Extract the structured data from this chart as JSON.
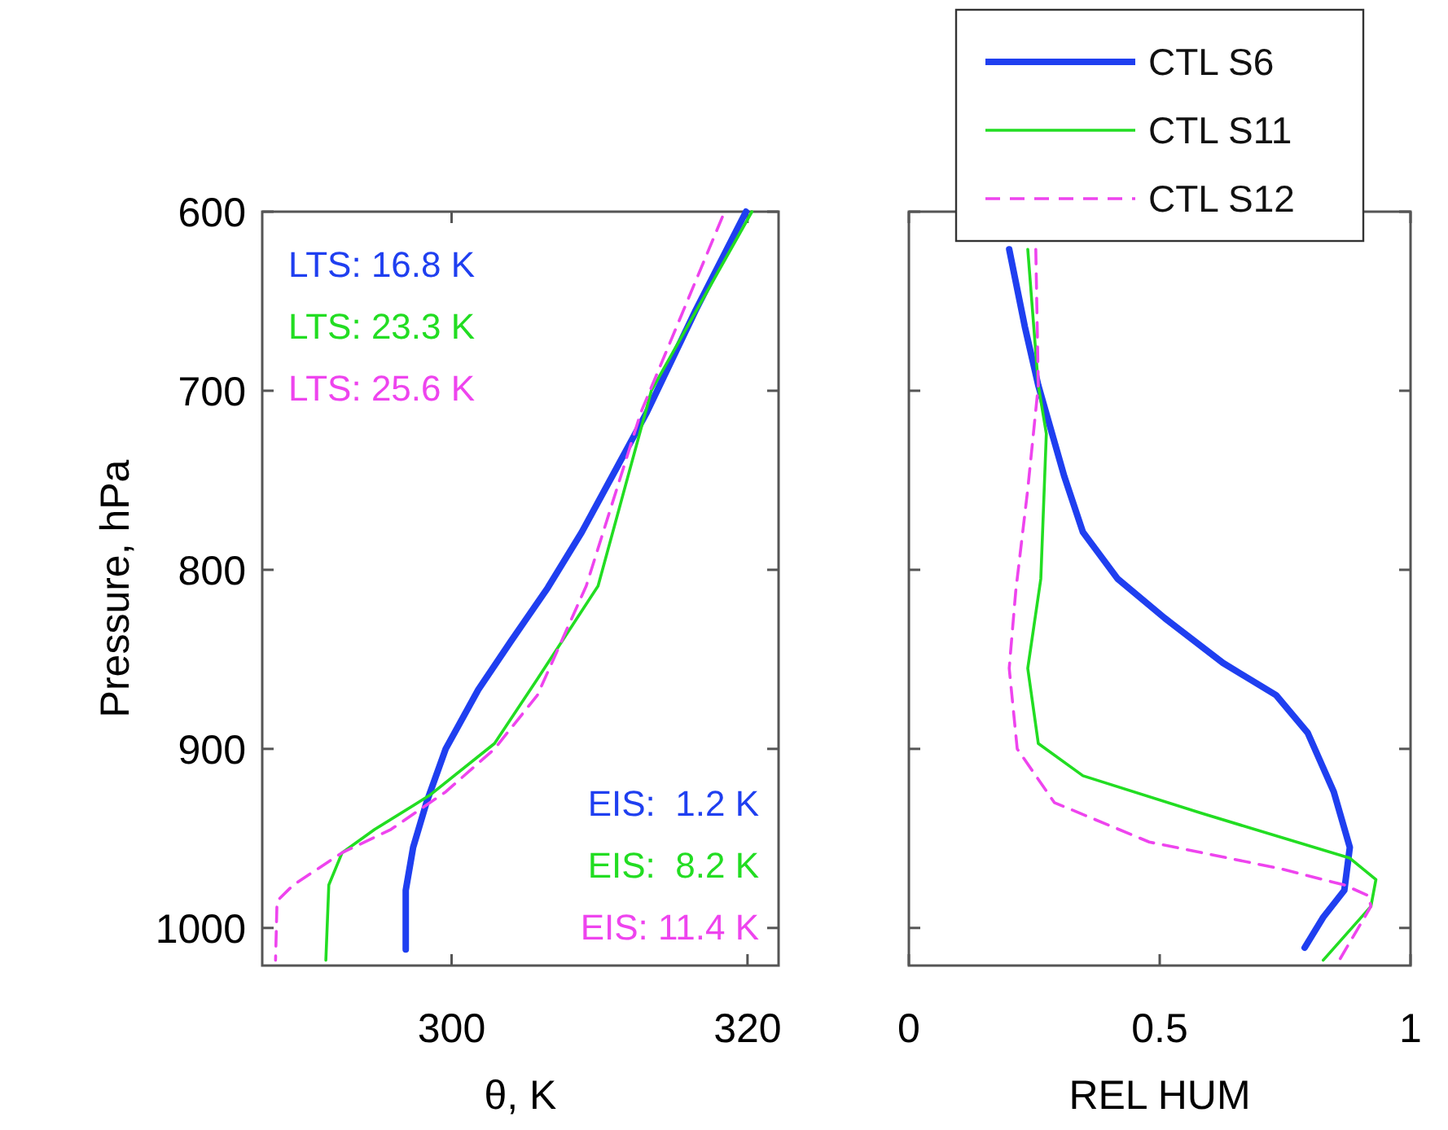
{
  "chart_data": [
    {
      "type": "line",
      "xlabel": "θ, K",
      "ylabel": "Pressure, hPa",
      "xlim": [
        287.2,
        322.1
      ],
      "xticks": [
        300,
        320
      ],
      "ylim": [
        1021,
        600
      ],
      "yticks": [
        600,
        700,
        800,
        900,
        1000
      ],
      "grid": false,
      "legend": false,
      "annotations": [
        "LTS: 16.8 K",
        "LTS: 23.3 K",
        "LTS: 25.6 K",
        "EIS:  1.2 K",
        "EIS:  8.2 K",
        "EIS: 11.4 K"
      ],
      "series": [
        {
          "color": "#1f3ff0",
          "line_style": "solid",
          "x": [
            319.9,
            316.5,
            313.2,
            308.8,
            306.5,
            304.0,
            301.8,
            299.6,
            298.3,
            297.4,
            296.9,
            296.9
          ],
          "values": [
            600,
            655,
            712,
            779,
            810,
            840,
            867,
            900,
            930,
            955,
            979,
            1012
          ]
        },
        {
          "color": "#22dd22",
          "line_style": "solid",
          "x": [
            320.3,
            313.5,
            309.9,
            305.8,
            302.9,
            298.5,
            294.8,
            292.6,
            291.7,
            291.5
          ],
          "values": [
            600,
            700,
            809,
            861,
            897,
            926,
            945,
            958,
            976,
            1018
          ]
        },
        {
          "color": "#ee44ee",
          "line_style": "dashed",
          "x": [
            318.3,
            312.8,
            309.1,
            305.8,
            302.9,
            299.6,
            295.9,
            292.6,
            289.3,
            288.2,
            288.1
          ],
          "values": [
            603,
            712,
            809,
            870,
            900,
            924,
            945,
            958,
            976,
            985,
            1018
          ]
        }
      ]
    },
    {
      "type": "line",
      "xlabel": "REL HUM",
      "xlim": [
        0,
        1
      ],
      "xticks": [
        0,
        0.5,
        1
      ],
      "ylim": [
        1021,
        600
      ],
      "yticks": [
        600,
        700,
        800,
        900,
        1000
      ],
      "tick_labels": "x",
      "grid": false,
      "legend": "top",
      "series": [
        {
          "name": "CTL S6",
          "color": "#1f3ff0",
          "line_style": "solid",
          "x": [
            0.2,
            0.231,
            0.258,
            0.31,
            0.347,
            0.416,
            0.51,
            0.626,
            0.732,
            0.795,
            0.847,
            0.879,
            0.868,
            0.826,
            0.789
          ],
          "values": [
            621,
            664,
            697,
            748,
            779,
            805,
            827,
            852,
            870,
            891,
            924,
            955,
            979,
            994,
            1011
          ]
        },
        {
          "name": "CTL S11",
          "color": "#22dd22",
          "line_style": "solid",
          "x": [
            0.237,
            0.258,
            0.274,
            0.263,
            0.237,
            0.258,
            0.347,
            0.584,
            0.879,
            0.931,
            0.921,
            0.826
          ],
          "values": [
            621,
            697,
            724,
            805,
            855,
            897,
            915,
            936,
            961,
            973,
            988,
            1018
          ]
        },
        {
          "name": "CTL S12",
          "color": "#ee44ee",
          "line_style": "dashed",
          "x": [
            0.253,
            0.258,
            0.237,
            0.213,
            0.2,
            0.216,
            0.29,
            0.479,
            0.742,
            0.868,
            0.916,
            0.921,
            0.858
          ],
          "values": [
            621,
            697,
            755,
            812,
            855,
            900,
            930,
            952,
            967,
            976,
            982,
            988,
            1018
          ]
        }
      ]
    }
  ]
}
